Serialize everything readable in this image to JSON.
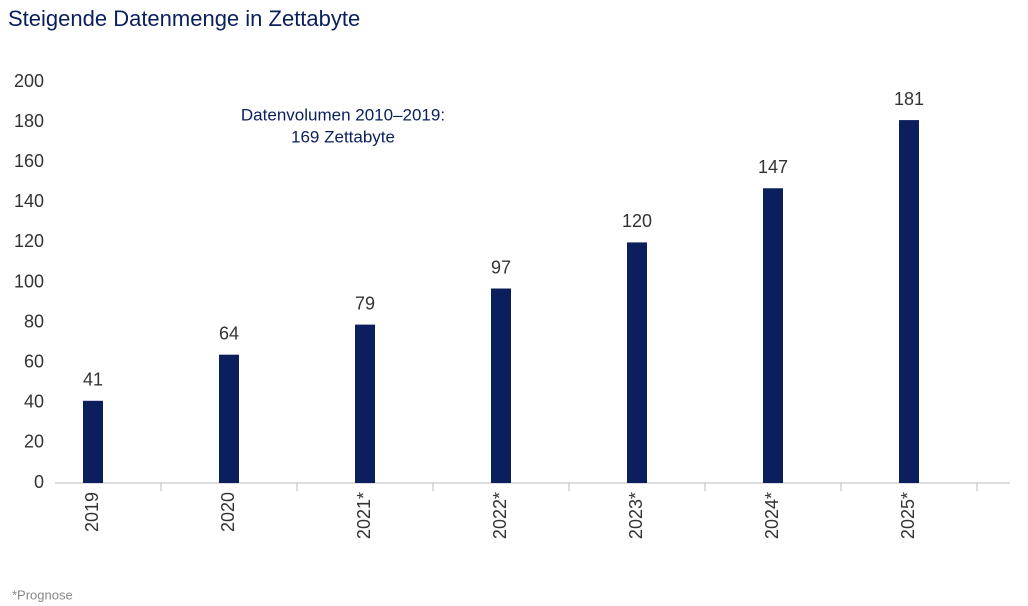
{
  "chart_data": {
    "type": "bar",
    "title": "Steigende Datenmenge in Zettabyte",
    "categories": [
      "2019",
      "2020",
      "2021*",
      "2022*",
      "2023*",
      "2024*",
      "2025*"
    ],
    "values": [
      41,
      64,
      79,
      97,
      120,
      147,
      181
    ],
    "color": "#0a1f5c",
    "ylim": [
      0,
      200
    ],
    "yticks": [
      0,
      20,
      40,
      60,
      80,
      100,
      120,
      140,
      160,
      180,
      200
    ],
    "grid": false,
    "annotation": [
      "Datenvolumen 2010–2019:",
      "169 Zettabyte"
    ],
    "footnote": "*Prognose"
  }
}
